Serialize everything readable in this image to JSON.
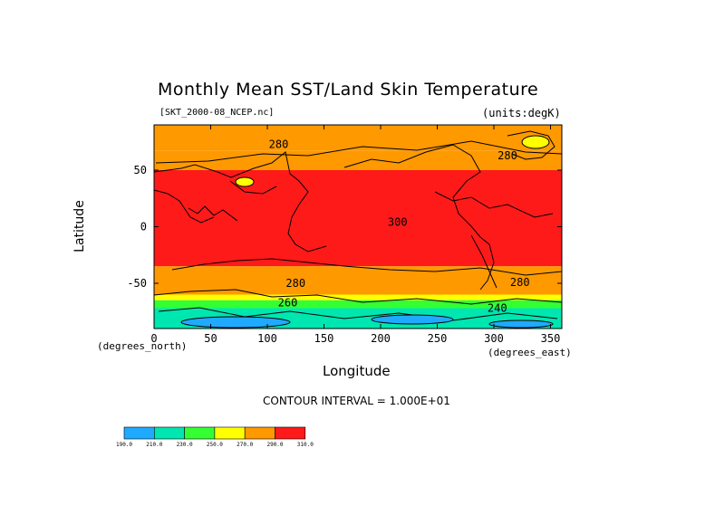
{
  "chart_data": {
    "type": "heatmap",
    "title": "Monthly Mean SST/Land Skin Temperature",
    "subtitle_left": "[SKT_2000-08_NCEP.nc]",
    "subtitle_right": "(units:degK)",
    "xlabel": "Longitude",
    "ylabel": "Latitude",
    "x_unit": "(degrees_east)",
    "y_unit": "(degrees_north)",
    "xlim": [
      0,
      360
    ],
    "ylim": [
      -90,
      90
    ],
    "x_ticks": [
      0,
      50,
      100,
      150,
      200,
      250,
      300,
      350
    ],
    "y_ticks": [
      -50,
      0,
      50
    ],
    "contour_interval": "CONTOUR INTERVAL = 1.000E+01",
    "contour_labels": [
      {
        "text": "280",
        "lon": 110,
        "lat": 73
      },
      {
        "text": "280",
        "lon": 312,
        "lat": 63
      },
      {
        "text": "300",
        "lon": 215,
        "lat": 4
      },
      {
        "text": "280",
        "lon": 125,
        "lat": -50
      },
      {
        "text": "280",
        "lon": 323,
        "lat": -49
      },
      {
        "text": "260",
        "lon": 118,
        "lat": -67
      },
      {
        "text": "240",
        "lon": 303,
        "lat": -72
      }
    ],
    "colorbar": {
      "levels": [
        "190.0",
        "210.0",
        "230.0",
        "250.0",
        "270.0",
        "290.0",
        "310.0"
      ],
      "colors": [
        "#1faaff",
        "#00e6b0",
        "#33ff33",
        "#ffff00",
        "#ff9900",
        "#ff1a1a"
      ]
    },
    "zones": [
      {
        "lat_from": 90,
        "lat_to": 67,
        "value": 280,
        "color": "#ff9900"
      },
      {
        "lat_from": 67,
        "lat_to": 50,
        "value": 285,
        "color": "#ff9900"
      },
      {
        "lat_from": 50,
        "lat_to": -35,
        "value": 300,
        "color": "#ff1a1a"
      },
      {
        "lat_from": -35,
        "lat_to": -60,
        "value": 280,
        "color": "#ff9900"
      },
      {
        "lat_from": -60,
        "lat_to": -65,
        "value": 265,
        "color": "#ffff00"
      },
      {
        "lat_from": -65,
        "lat_to": -72,
        "value": 245,
        "color": "#33ff33"
      },
      {
        "lat_from": -72,
        "lat_to": -90,
        "value": 220,
        "color": "#00e6b0"
      }
    ],
    "grid": false,
    "legend": "bottom-left"
  }
}
